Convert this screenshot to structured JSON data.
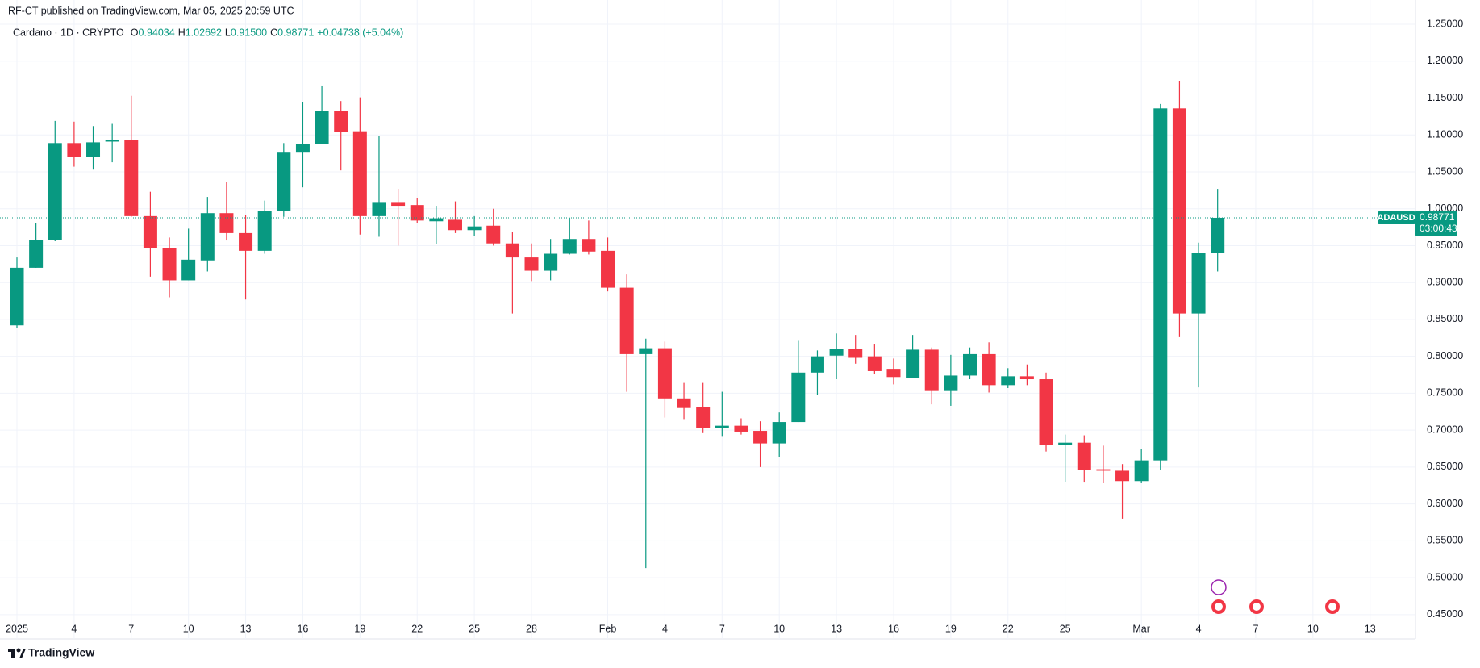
{
  "header": {
    "publisher": "RF-CT published on TradingView.com, Mar 05, 2025 20:59 UTC"
  },
  "chart_data": {
    "type": "candlestick",
    "title": "Cardano · 1D · CRYPTO",
    "ohlc_legend": [
      {
        "label": "O",
        "value": "0.94034"
      },
      {
        "label": "H",
        "value": "1.02692"
      },
      {
        "label": "L",
        "value": "0.91500"
      },
      {
        "label": "C",
        "value": "0.98771"
      }
    ],
    "change": "+0.04738 (+5.04%)",
    "categories": [
      "2025",
      null,
      null,
      "4",
      null,
      null,
      "7",
      null,
      null,
      "10",
      null,
      null,
      "13",
      null,
      null,
      "16",
      null,
      null,
      "19",
      null,
      null,
      "22",
      null,
      null,
      "25",
      null,
      null,
      "28",
      null,
      null,
      null,
      "Feb",
      null,
      null,
      "4",
      null,
      null,
      "7",
      null,
      null,
      "10",
      null,
      null,
      "13",
      null,
      null,
      "16",
      null,
      null,
      "19",
      null,
      null,
      "22",
      null,
      null,
      "25",
      null,
      null,
      null,
      "Mar",
      null,
      null,
      "4",
      null,
      null,
      "7",
      null,
      null,
      "10",
      null,
      null,
      "13"
    ],
    "open": [
      0.842,
      0.92,
      0.958,
      1.089,
      1.07,
      1.091,
      1.093,
      0.99,
      0.947,
      0.903,
      0.93,
      0.994,
      0.967,
      0.943,
      0.997,
      1.076,
      1.088,
      1.132,
      1.105,
      0.99,
      1.008,
      1.005,
      0.983,
      0.985,
      0.971,
      0.977,
      0.953,
      0.934,
      0.916,
      0.939,
      0.959,
      0.943,
      0.893,
      0.803,
      0.811,
      0.743,
      0.731,
      0.703,
      0.706,
      0.699,
      0.682,
      0.711,
      0.778,
      0.801,
      0.81,
      0.8,
      0.782,
      0.771,
      0.809,
      0.753,
      0.774,
      0.803,
      0.761,
      0.773,
      0.769,
      0.68,
      0.683,
      0.647,
      0.645,
      0.631,
      0.659,
      1.136,
      0.858,
      0.94034,
      null,
      null,
      null,
      null,
      null,
      null,
      null,
      null
    ],
    "high": [
      0.934,
      0.98,
      1.119,
      1.118,
      1.112,
      1.115,
      1.153,
      1.023,
      0.961,
      0.973,
      1.016,
      1.036,
      0.991,
      1.011,
      1.089,
      1.145,
      1.167,
      1.146,
      1.151,
      1.099,
      1.027,
      1.014,
      1.004,
      1.01,
      0.99,
      1.0,
      0.968,
      0.953,
      0.959,
      0.988,
      0.984,
      0.961,
      0.911,
      0.824,
      0.82,
      0.764,
      0.764,
      0.752,
      0.716,
      0.712,
      0.724,
      0.821,
      0.808,
      0.831,
      0.829,
      0.816,
      0.797,
      0.829,
      0.812,
      0.802,
      0.812,
      0.819,
      0.784,
      0.789,
      0.778,
      0.694,
      0.693,
      0.679,
      0.654,
      0.675,
      1.142,
      1.173,
      0.954,
      1.02692,
      null,
      null,
      null,
      null,
      null,
      null,
      null,
      null
    ],
    "low": [
      0.838,
      0.92,
      0.956,
      1.057,
      1.053,
      1.063,
      0.989,
      0.908,
      0.88,
      0.903,
      0.915,
      0.957,
      0.877,
      0.939,
      0.989,
      1.029,
      1.088,
      1.052,
      0.965,
      0.962,
      0.95,
      0.98,
      0.952,
      0.967,
      0.963,
      0.95,
      0.858,
      0.902,
      0.903,
      0.938,
      0.938,
      0.888,
      0.752,
      0.513,
      0.717,
      0.715,
      0.696,
      0.691,
      0.694,
      0.65,
      0.663,
      0.711,
      0.748,
      0.769,
      0.79,
      0.776,
      0.762,
      0.771,
      0.735,
      0.733,
      0.769,
      0.751,
      0.757,
      0.761,
      0.671,
      0.63,
      0.629,
      0.628,
      0.58,
      0.628,
      0.646,
      0.826,
      0.758,
      0.915,
      null,
      null,
      null,
      null,
      null,
      null,
      null,
      null
    ],
    "close": [
      0.92,
      0.958,
      1.089,
      1.07,
      1.09,
      1.093,
      0.99,
      0.947,
      0.903,
      0.931,
      0.994,
      0.967,
      0.943,
      0.997,
      1.076,
      1.088,
      1.132,
      1.104,
      0.99,
      1.008,
      1.004,
      0.984,
      0.987,
      0.971,
      0.976,
      0.953,
      0.934,
      0.916,
      0.939,
      0.959,
      0.942,
      0.893,
      0.803,
      0.811,
      0.743,
      0.73,
      0.703,
      0.706,
      0.698,
      0.682,
      0.711,
      0.778,
      0.8,
      0.81,
      0.798,
      0.78,
      0.772,
      0.809,
      0.753,
      0.774,
      0.803,
      0.761,
      0.773,
      0.769,
      0.68,
      0.683,
      0.646,
      0.645,
      0.631,
      0.659,
      1.136,
      0.858,
      0.94034,
      0.98771,
      null,
      null,
      null,
      null,
      null,
      null,
      null,
      null
    ],
    "up_color": "#089981",
    "down_color": "#f23645",
    "ylim": [
      0.417,
      1.273
    ],
    "yticks": [
      {
        "value": 0.45,
        "label": "0.45000"
      },
      {
        "value": 0.5,
        "label": "0.50000"
      },
      {
        "value": 0.55,
        "label": "0.55000"
      },
      {
        "value": 0.6,
        "label": "0.60000"
      },
      {
        "value": 0.65,
        "label": "0.65000"
      },
      {
        "value": 0.7,
        "label": "0.70000"
      },
      {
        "value": 0.75,
        "label": "0.75000"
      },
      {
        "value": 0.8,
        "label": "0.80000"
      },
      {
        "value": 0.85,
        "label": "0.85000"
      },
      {
        "value": 0.9,
        "label": "0.90000"
      },
      {
        "value": 0.95,
        "label": "0.95000"
      },
      {
        "value": 1.0,
        "label": "1.00000"
      },
      {
        "value": 1.05,
        "label": "1.05000"
      },
      {
        "value": 1.1,
        "label": "1.10000"
      },
      {
        "value": 1.15,
        "label": "1.15000"
      },
      {
        "value": 1.2,
        "label": "1.20000"
      },
      {
        "value": 1.25,
        "label": "1.25000"
      }
    ],
    "grid": true,
    "last_price": {
      "symbol": "ADAUSD",
      "price": "0.98771",
      "countdown": "03:00:43"
    }
  },
  "footer": {
    "brand": "TradingView"
  }
}
